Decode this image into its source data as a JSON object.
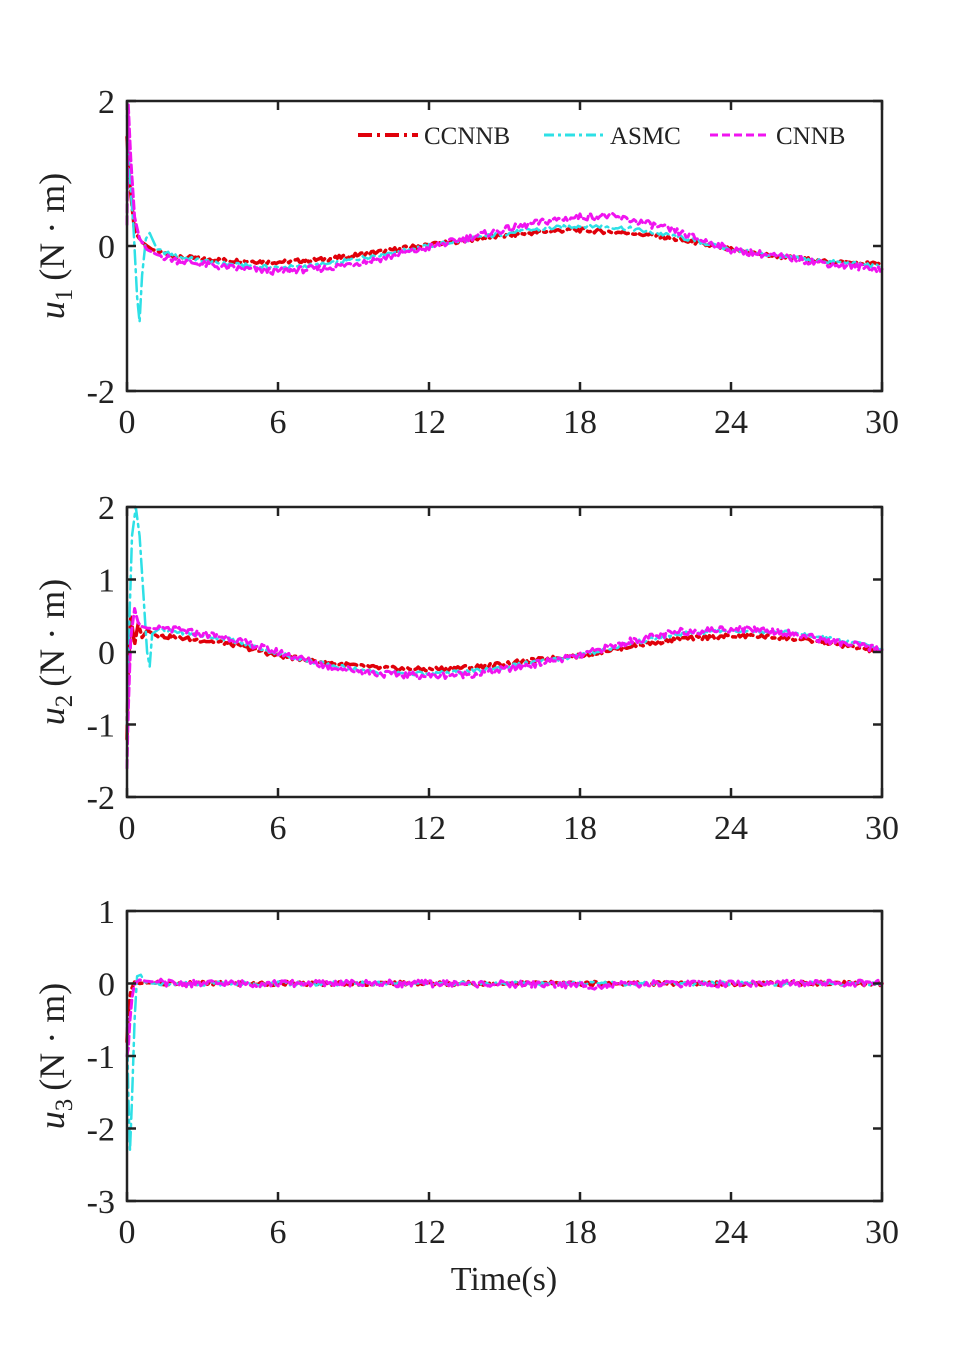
{
  "chart_data": [
    {
      "type": "line",
      "ylabel_var": "u",
      "ylabel_sub": "1",
      "ylabel_unit": "(N · m)",
      "xlabel": "",
      "xlim": [
        0,
        30
      ],
      "ylim": [
        -2,
        2
      ],
      "xticks": [
        "0",
        "6",
        "12",
        "18",
        "24",
        "30"
      ],
      "yticks": [
        "-2",
        "0",
        "2"
      ],
      "legend": {
        "position": "top-right",
        "entries": [
          "CCNNB",
          "ASMC",
          "CNNB"
        ]
      },
      "series": [
        {
          "name": "CCNNB",
          "color": "#e0000a",
          "style": "dash-dot",
          "x": [
            0,
            0.1,
            0.3,
            0.6,
            1,
            2,
            4,
            6,
            8,
            10,
            12,
            14,
            16,
            17,
            18,
            19,
            20,
            21,
            22,
            24,
            26,
            28,
            30
          ],
          "y": [
            1.5,
            0.9,
            0.2,
            0.05,
            -0.05,
            -0.15,
            -0.2,
            -0.22,
            -0.18,
            -0.08,
            0.02,
            0.1,
            0.18,
            0.21,
            0.22,
            0.2,
            0.18,
            0.14,
            0.08,
            -0.05,
            -0.15,
            -0.22,
            -0.25
          ]
        },
        {
          "name": "ASMC",
          "color": "#2ee0e6",
          "style": "dash-dot",
          "x": [
            0,
            0.1,
            0.25,
            0.4,
            0.5,
            0.6,
            0.75,
            0.9,
            1.2,
            2,
            4,
            6,
            8,
            10,
            12,
            14,
            16,
            18,
            19,
            20,
            22,
            24,
            26,
            28,
            30
          ],
          "y": [
            1.8,
            1.0,
            0.3,
            -0.7,
            -1.05,
            -0.4,
            0.1,
            0.18,
            -0.05,
            -0.15,
            -0.25,
            -0.3,
            -0.25,
            -0.12,
            0.0,
            0.12,
            0.22,
            0.28,
            0.27,
            0.24,
            0.12,
            -0.05,
            -0.15,
            -0.22,
            -0.28
          ]
        },
        {
          "name": "CNNB",
          "color": "#f014f0",
          "style": "dashed",
          "x": [
            0,
            0.05,
            0.15,
            0.3,
            0.5,
            0.8,
            1.2,
            2,
            4,
            6,
            8,
            10,
            12,
            14,
            16,
            17,
            18,
            19,
            20,
            21,
            22,
            24,
            26,
            28,
            30
          ],
          "y": [
            0.3,
            1.95,
            1.2,
            0.4,
            0.1,
            -0.05,
            -0.12,
            -0.2,
            -0.3,
            -0.35,
            -0.3,
            -0.18,
            -0.02,
            0.15,
            0.3,
            0.36,
            0.4,
            0.42,
            0.36,
            0.28,
            0.18,
            -0.05,
            -0.15,
            -0.25,
            -0.32
          ]
        }
      ]
    },
    {
      "type": "line",
      "ylabel_var": "u",
      "ylabel_sub": "2",
      "ylabel_unit": "(N · m)",
      "xlabel": "",
      "xlim": [
        0,
        30
      ],
      "ylim": [
        -2,
        2
      ],
      "xticks": [
        "0",
        "6",
        "12",
        "18",
        "24",
        "30"
      ],
      "yticks": [
        "-2",
        "-1",
        "0",
        "1",
        "2"
      ],
      "series": [
        {
          "name": "CCNNB",
          "color": "#e0000a",
          "style": "dash-dot",
          "x": [
            0,
            0.05,
            0.15,
            0.3,
            0.45,
            0.6,
            0.8,
            1.2,
            2,
            4,
            6,
            8,
            10,
            12,
            14,
            16,
            18,
            20,
            22,
            24,
            25,
            26,
            28,
            30
          ],
          "y": [
            -1.2,
            -0.3,
            0.5,
            0.1,
            0.4,
            0.2,
            0.3,
            0.22,
            0.2,
            0.12,
            -0.05,
            -0.15,
            -0.22,
            -0.24,
            -0.2,
            -0.12,
            -0.05,
            0.08,
            0.18,
            0.22,
            0.22,
            0.2,
            0.12,
            0.0
          ]
        },
        {
          "name": "ASMC",
          "color": "#2ee0e6",
          "style": "dash-dot",
          "x": [
            0,
            0.1,
            0.2,
            0.35,
            0.5,
            0.65,
            0.8,
            0.9,
            1.0,
            1.2,
            2,
            4,
            6,
            8,
            10,
            12,
            14,
            16,
            18,
            20,
            22,
            24,
            26,
            28,
            30
          ],
          "y": [
            -1.0,
            0.5,
            1.6,
            2.0,
            1.6,
            0.8,
            0.0,
            -0.2,
            0.25,
            0.3,
            0.28,
            0.18,
            -0.02,
            -0.18,
            -0.28,
            -0.3,
            -0.26,
            -0.15,
            -0.05,
            0.12,
            0.25,
            0.3,
            0.28,
            0.18,
            0.05
          ]
        },
        {
          "name": "CNNB",
          "color": "#f014f0",
          "style": "dashed",
          "x": [
            0,
            0.05,
            0.15,
            0.3,
            0.45,
            0.6,
            0.8,
            1.2,
            2,
            4,
            6,
            8,
            10,
            12,
            14,
            16,
            18,
            20,
            22,
            24,
            25,
            26,
            28,
            30
          ],
          "y": [
            -1.6,
            -0.8,
            0.2,
            0.6,
            0.4,
            0.35,
            0.33,
            0.32,
            0.3,
            0.2,
            0.0,
            -0.2,
            -0.3,
            -0.33,
            -0.3,
            -0.18,
            -0.05,
            0.15,
            0.28,
            0.32,
            0.32,
            0.28,
            0.15,
            0.03
          ]
        }
      ]
    },
    {
      "type": "line",
      "ylabel_var": "u",
      "ylabel_sub": "3",
      "ylabel_unit": "(N · m)",
      "xlabel": "Time(s)",
      "xlim": [
        0,
        30
      ],
      "ylim": [
        -3,
        1
      ],
      "xticks": [
        "0",
        "6",
        "12",
        "18",
        "24",
        "30"
      ],
      "yticks": [
        "-3",
        "-2",
        "-1",
        "0",
        "1"
      ],
      "series": [
        {
          "name": "CCNNB",
          "color": "#e0000a",
          "style": "dash-dot",
          "x": [
            0,
            0.05,
            0.15,
            0.3,
            0.5,
            0.8,
            1.5,
            6,
            12,
            18,
            24,
            30
          ],
          "y": [
            -0.8,
            -0.4,
            -0.1,
            0.02,
            0.0,
            0.01,
            0.0,
            0.0,
            0.0,
            0.0,
            0.0,
            0.0
          ]
        },
        {
          "name": "ASMC",
          "color": "#2ee0e6",
          "style": "dash-dot",
          "x": [
            0,
            0.05,
            0.12,
            0.2,
            0.3,
            0.4,
            0.55,
            0.7,
            1.0,
            2,
            6,
            12,
            18,
            24,
            30
          ],
          "y": [
            -0.5,
            -1.5,
            -2.3,
            -1.6,
            -0.5,
            0.1,
            0.12,
            0.02,
            0.0,
            0.0,
            0.0,
            0.0,
            0.0,
            0.0,
            0.0
          ]
        },
        {
          "name": "CNNB",
          "color": "#f014f0",
          "style": "dashed",
          "x": [
            0,
            0.05,
            0.12,
            0.2,
            0.3,
            0.5,
            0.8,
            1.2,
            2,
            6,
            12,
            18,
            19,
            20,
            24,
            30
          ],
          "y": [
            -1.0,
            -0.9,
            -0.5,
            -0.2,
            0.0,
            0.05,
            0.03,
            0.02,
            0.0,
            0.0,
            0.0,
            -0.02,
            -0.04,
            -0.01,
            0.0,
            0.0
          ]
        }
      ]
    }
  ]
}
